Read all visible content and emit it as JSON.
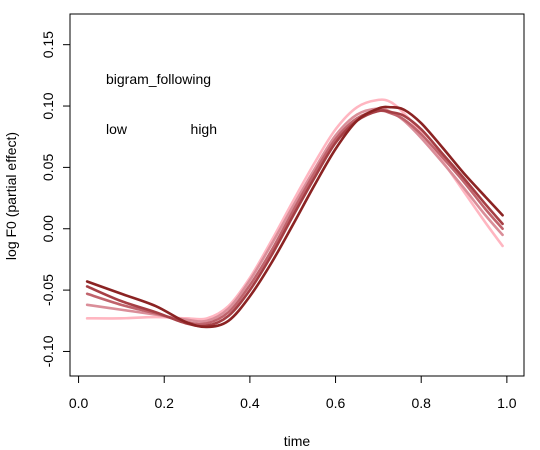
{
  "chart_data": {
    "type": "line",
    "title": "",
    "xlabel": "time",
    "ylabel": "log F0 (partial effect)",
    "xlim": [
      -0.02,
      1.04
    ],
    "ylim": [
      -0.12,
      0.175
    ],
    "xticks": [
      0.0,
      0.2,
      0.4,
      0.6,
      0.8,
      1.0
    ],
    "xtick_labels": [
      "0.0",
      "0.2",
      "0.4",
      "0.6",
      "0.8",
      "1.0"
    ],
    "yticks": [
      -0.1,
      -0.05,
      0.0,
      0.05,
      0.1,
      0.15
    ],
    "ytick_labels": [
      "-0.10",
      "-0.05",
      "0.00",
      "0.05",
      "0.10",
      "0.15"
    ],
    "grid": false,
    "legend": {
      "title": "bigram_following",
      "low_label": "low",
      "high_label": "high",
      "placement": "top-left",
      "gradient_colors": [
        "#8b2323",
        "#ffb6c1"
      ]
    },
    "series": [
      {
        "color": "#8b2323",
        "x": [
          0.02,
          0.1,
          0.18,
          0.25,
          0.3,
          0.35,
          0.4,
          0.45,
          0.5,
          0.55,
          0.6,
          0.65,
          0.7,
          0.73,
          0.76,
          0.8,
          0.85,
          0.9,
          0.95,
          0.99
        ],
        "y": [
          -0.043,
          -0.053,
          -0.063,
          -0.076,
          -0.08,
          -0.075,
          -0.055,
          -0.028,
          0.003,
          0.035,
          0.065,
          0.088,
          0.098,
          0.099,
          0.097,
          0.086,
          0.066,
          0.045,
          0.026,
          0.011
        ]
      },
      {
        "color": "#a63f45",
        "x": [
          0.02,
          0.1,
          0.18,
          0.25,
          0.3,
          0.35,
          0.4,
          0.45,
          0.5,
          0.55,
          0.6,
          0.65,
          0.7,
          0.73,
          0.76,
          0.8,
          0.85,
          0.9,
          0.95,
          0.99
        ],
        "y": [
          -0.047,
          -0.059,
          -0.068,
          -0.077,
          -0.079,
          -0.071,
          -0.05,
          -0.022,
          0.01,
          0.041,
          0.07,
          0.088,
          0.096,
          0.095,
          0.092,
          0.081,
          0.061,
          0.041,
          0.02,
          0.004
        ]
      },
      {
        "color": "#c0636c",
        "x": [
          0.02,
          0.1,
          0.18,
          0.25,
          0.3,
          0.35,
          0.4,
          0.45,
          0.5,
          0.55,
          0.6,
          0.65,
          0.7,
          0.73,
          0.76,
          0.8,
          0.85,
          0.9,
          0.95,
          0.99
        ],
        "y": [
          -0.053,
          -0.062,
          -0.069,
          -0.076,
          -0.077,
          -0.068,
          -0.046,
          -0.018,
          0.014,
          0.045,
          0.073,
          0.09,
          0.096,
          0.094,
          0.089,
          0.077,
          0.058,
          0.038,
          0.016,
          0.0
        ]
      },
      {
        "color": "#da8e99",
        "x": [
          0.02,
          0.1,
          0.18,
          0.25,
          0.3,
          0.35,
          0.4,
          0.45,
          0.5,
          0.55,
          0.6,
          0.65,
          0.7,
          0.73,
          0.76,
          0.8,
          0.85,
          0.9,
          0.95,
          0.99
        ],
        "y": [
          -0.062,
          -0.066,
          -0.07,
          -0.074,
          -0.075,
          -0.065,
          -0.042,
          -0.013,
          0.018,
          0.048,
          0.076,
          0.093,
          0.098,
          0.095,
          0.088,
          0.074,
          0.054,
          0.033,
          0.011,
          -0.005
        ]
      },
      {
        "color": "#ffb6c1",
        "x": [
          0.02,
          0.1,
          0.18,
          0.25,
          0.3,
          0.35,
          0.4,
          0.45,
          0.5,
          0.55,
          0.6,
          0.65,
          0.7,
          0.73,
          0.76,
          0.8,
          0.85,
          0.9,
          0.95,
          0.99
        ],
        "y": [
          -0.073,
          -0.073,
          -0.072,
          -0.073,
          -0.073,
          -0.063,
          -0.04,
          -0.01,
          0.022,
          0.053,
          0.081,
          0.099,
          0.105,
          0.103,
          0.094,
          0.078,
          0.055,
          0.03,
          0.005,
          -0.014
        ]
      }
    ]
  }
}
